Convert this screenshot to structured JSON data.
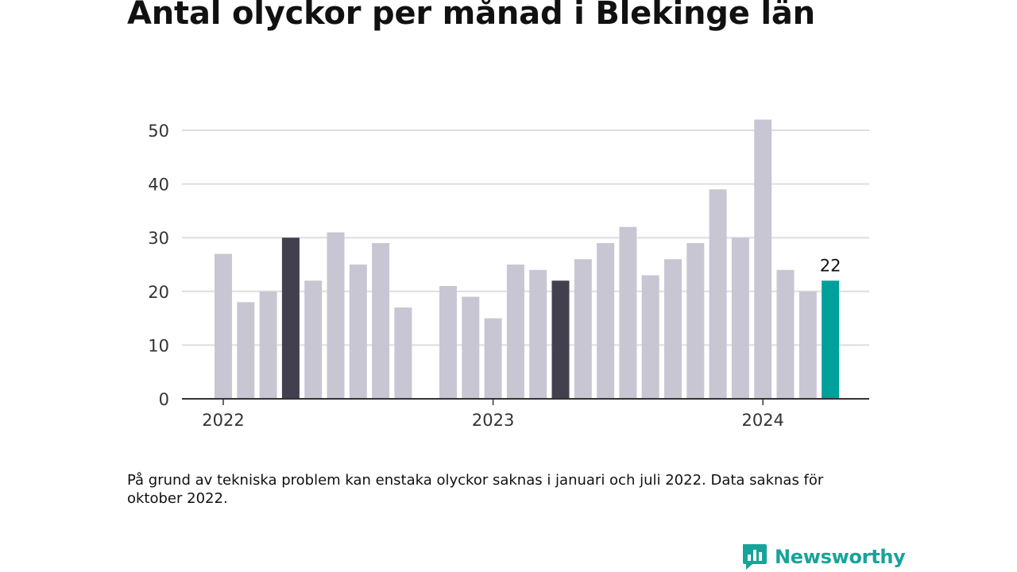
{
  "title": "Antal olyckor per månad i Blekinge län",
  "note": "På grund av tekniska problem kan enstaka olyckor saknas i januari och juli 2022. Data saknas för oktober 2022.",
  "brand": {
    "name": "Newsworthy",
    "icon": "newsworthy-logo-icon",
    "color": "#17a39a"
  },
  "chart_data": {
    "type": "bar",
    "categories": [
      "2022-01",
      "2022-02",
      "2022-03",
      "2022-04",
      "2022-05",
      "2022-06",
      "2022-07",
      "2022-08",
      "2022-09",
      "2022-10",
      "2022-11",
      "2022-12",
      "2023-01",
      "2023-02",
      "2023-03",
      "2023-04",
      "2023-05",
      "2023-06",
      "2023-07",
      "2023-08",
      "2023-09",
      "2023-10",
      "2023-11",
      "2023-12",
      "2024-01",
      "2024-02",
      "2024-03",
      "2024-04"
    ],
    "values": [
      27,
      18,
      20,
      30,
      22,
      31,
      25,
      29,
      17,
      null,
      21,
      19,
      15,
      25,
      24,
      22,
      26,
      29,
      32,
      23,
      26,
      29,
      39,
      30,
      52,
      24,
      20,
      22
    ],
    "highlight": {
      "2022-04": "dark",
      "2023-04": "dark",
      "2024-04": "accent"
    },
    "colors": {
      "default": "#c8c6d3",
      "dark": "#42404f",
      "accent": "#00a09a",
      "grid": "#dedede",
      "axis": "#333333"
    },
    "xticks": [
      "2022",
      "2023",
      "2024"
    ],
    "yticks": [
      0,
      10,
      20,
      30,
      40,
      50
    ],
    "ylim": [
      0,
      52
    ],
    "value_label": "22",
    "grid": true,
    "xlabel": "",
    "ylabel": ""
  }
}
